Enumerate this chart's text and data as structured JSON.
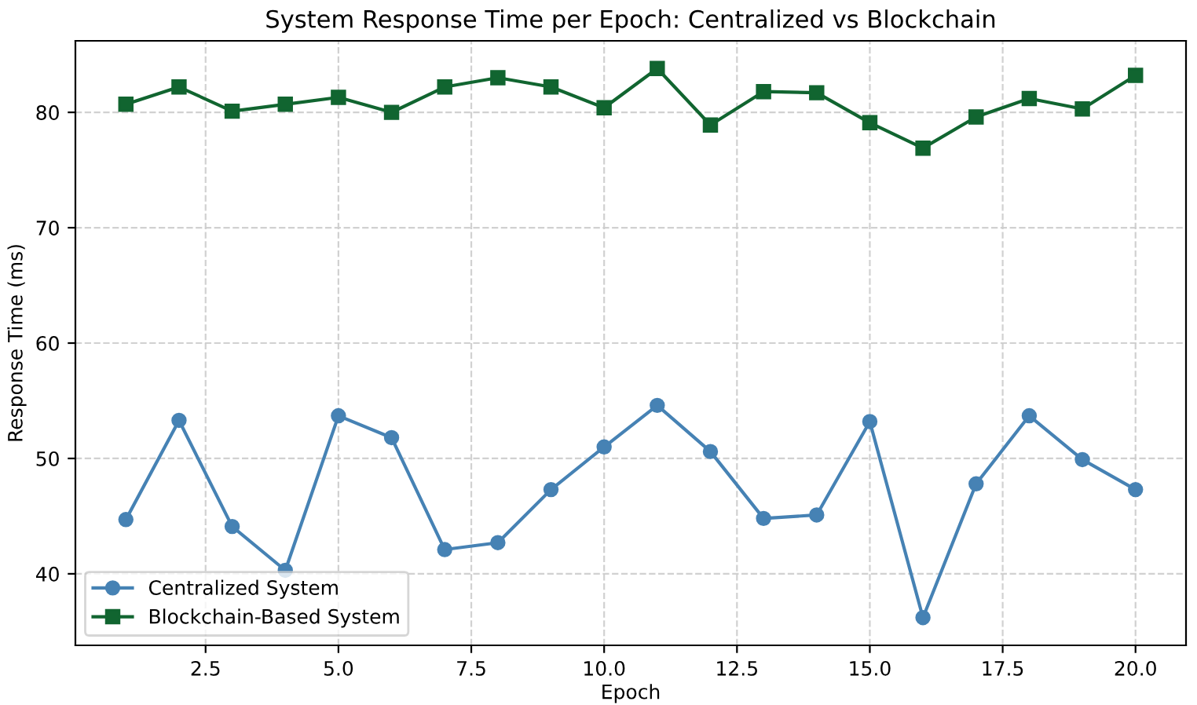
{
  "chart_data": {
    "type": "line",
    "title": "System Response Time per Epoch: Centralized vs Blockchain",
    "xlabel": "Epoch",
    "ylabel": "Response Time (ms)",
    "x": [
      1,
      2,
      3,
      4,
      5,
      6,
      7,
      8,
      9,
      10,
      11,
      12,
      13,
      14,
      15,
      16,
      17,
      18,
      19,
      20
    ],
    "series": [
      {
        "name": "Centralized System",
        "color": "#4682b4",
        "marker": "circle",
        "values": [
          44.7,
          53.3,
          44.1,
          40.3,
          53.7,
          51.8,
          42.1,
          42.7,
          47.3,
          51.0,
          54.6,
          50.6,
          44.8,
          45.1,
          53.2,
          36.2,
          47.8,
          53.7,
          49.9,
          47.3
        ]
      },
      {
        "name": "Blockchain-Based System",
        "color": "#116530",
        "marker": "square",
        "values": [
          80.7,
          82.2,
          80.1,
          80.7,
          81.3,
          80.0,
          82.2,
          83.0,
          82.2,
          80.4,
          83.8,
          78.9,
          81.8,
          81.7,
          79.1,
          76.9,
          79.6,
          81.2,
          80.3,
          83.2
        ]
      }
    ],
    "xlim": [
      0.05,
      20.95
    ],
    "ylim": [
      33.8,
      86.2
    ],
    "xticks": [
      {
        "value": 2.5,
        "label": "2.5"
      },
      {
        "value": 5,
        "label": "5.0"
      },
      {
        "value": 7.5,
        "label": "7.5"
      },
      {
        "value": 10,
        "label": "10.0"
      },
      {
        "value": 12.5,
        "label": "12.5"
      },
      {
        "value": 15,
        "label": "15.0"
      },
      {
        "value": 17.5,
        "label": "17.5"
      },
      {
        "value": 20,
        "label": "20.0"
      }
    ],
    "yticks": [
      40,
      50,
      60,
      70,
      80
    ],
    "grid": true,
    "legend": "bottom left",
    "line_style": "solid"
  }
}
